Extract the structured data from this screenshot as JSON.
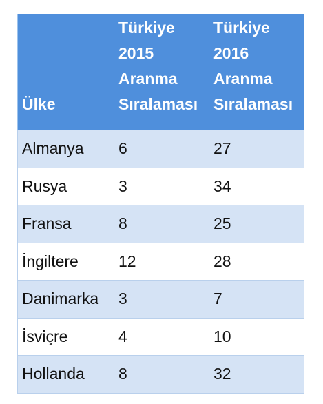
{
  "table": {
    "header": [
      "Ülke",
      "Türkiye 2015 Aranma Sıralaması",
      "Türkiye 2016 Aranma Sıralaması"
    ],
    "rows": [
      [
        "Almanya",
        6,
        27
      ],
      [
        "Rusya",
        3,
        34
      ],
      [
        "Fransa",
        8,
        25
      ],
      [
        "İngiltere",
        12,
        28
      ],
      [
        "Danimarka",
        3,
        7
      ],
      [
        "İsviçre",
        4,
        10
      ],
      [
        "Hollanda",
        8,
        32
      ]
    ]
  }
}
